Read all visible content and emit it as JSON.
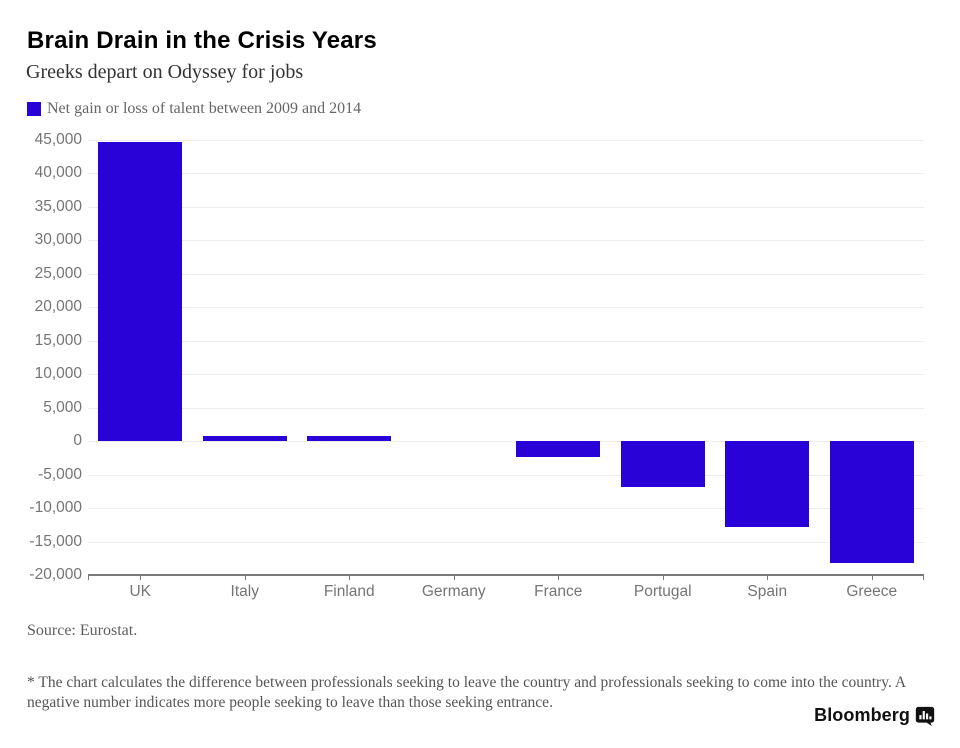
{
  "header": {
    "title": "Brain Drain in the Crisis Years",
    "subtitle": "Greeks depart on Odyssey for jobs"
  },
  "legend": {
    "label": "Net gain or loss of talent between 2009 and 2014",
    "swatch_color": "#2802d6"
  },
  "chart_data": {
    "type": "bar",
    "title": "Brain Drain in the Crisis Years",
    "subtitle": "Greeks depart on Odyssey for jobs",
    "series_label": "Net gain or loss of talent between 2009 and 2014",
    "categories": [
      "UK",
      "Italy",
      "Finland",
      "Germany",
      "France",
      "Portugal",
      "Spain",
      "Greece"
    ],
    "values": [
      44700,
      700,
      700,
      0,
      -2300,
      -6800,
      -12800,
      -18200
    ],
    "xlabel": "",
    "ylabel": "",
    "ylim": [
      -20000,
      45000
    ],
    "ytick_step": 5000,
    "grid": true,
    "legend_position": "top-left",
    "bar_color": "#2802d6",
    "gridline_color": "#ececec",
    "axis_color": "#76787a",
    "tick_label_color": "#757575"
  },
  "footer": {
    "source": "Source: Eurostat.",
    "footnote": "* The chart calculates the difference between professionals seeking to leave the country and professionals seeking to come into the country. A negative number indicates more people seeking to leave than those seeking entrance.",
    "brand": "Bloomberg"
  }
}
